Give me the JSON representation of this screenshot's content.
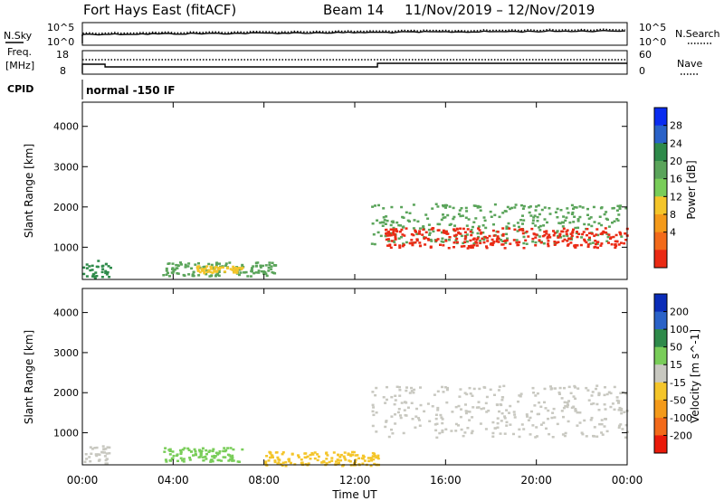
{
  "header": {
    "radar": "Fort Hays East (fitACF)",
    "beam": "Beam 14",
    "dates": "11/Nov/2019 – 12/Nov/2019"
  },
  "summary": {
    "nsky_label": "N.Sky",
    "nsky_ticks": [
      "10^5",
      "10^0"
    ],
    "nsearch_label": "N.Search",
    "freq_label": "Freq.",
    "freq_unit": "[MHz]",
    "freq_ticks": [
      "18",
      "8"
    ],
    "nave_label": "Nave",
    "nave_ticks": [
      "60",
      "0"
    ],
    "cpid_label": "CPID",
    "cpid_value": "normal -150 IF"
  },
  "chart_data": [
    {
      "type": "heatmap",
      "name": "power",
      "ylabel": "Slant Range [km]",
      "xlabel": "Time UT",
      "ylim": [
        200,
        4600
      ],
      "yticks": [
        "4000",
        "3000",
        "2000",
        "1000"
      ],
      "colorbar_label": "Power [dB]",
      "colorbar_ticks": [
        "28",
        "24",
        "20",
        "16",
        "12",
        "8",
        "4"
      ],
      "colorbar_colors": [
        "#0a2cf0",
        "#2a62c8",
        "#2e8a4a",
        "#5aa45a",
        "#79cd59",
        "#f4c52a",
        "#f49a1a",
        "#f26a1a",
        "#ea2a14"
      ],
      "scatter_regions": [
        {
          "t_start": 0.0,
          "t_end": 1.2,
          "r_low": 250,
          "r_high": 700,
          "color": "#2e8a4a"
        },
        {
          "t_start": 3.5,
          "t_end": 8.5,
          "r_low": 300,
          "r_high": 650,
          "color": "#5aa45a"
        },
        {
          "t_start": 5.0,
          "t_end": 7.0,
          "r_low": 380,
          "r_high": 560,
          "color": "#f4c52a"
        },
        {
          "t_start": 12.7,
          "t_end": 24.0,
          "r_low": 1100,
          "r_high": 2100,
          "color": "#5aa45a"
        },
        {
          "t_start": 13.3,
          "t_end": 24.0,
          "r_low": 1000,
          "r_high": 1500,
          "color": "#ea2a14"
        }
      ]
    },
    {
      "type": "heatmap",
      "name": "velocity",
      "ylabel": "Slant Range [km]",
      "xlabel": "Time UT",
      "ylim": [
        200,
        4600
      ],
      "yticks": [
        "4000",
        "3000",
        "2000",
        "1000"
      ],
      "xticks": [
        "00:00",
        "04:00",
        "08:00",
        "12:00",
        "16:00",
        "20:00",
        "00:00"
      ],
      "colorbar_label": "Velocity [m s^-1]",
      "colorbar_ticks": [
        "200",
        "100",
        "50",
        "15",
        "-15",
        "-50",
        "-100",
        "-200"
      ],
      "colorbar_colors": [
        "#0a2cb8",
        "#2a62c8",
        "#2e8a4a",
        "#79cd59",
        "#c8c8c0",
        "#f4c52a",
        "#f49a1a",
        "#f26a1a",
        "#ea1a0a"
      ],
      "scatter_regions": [
        {
          "t_start": 0.0,
          "t_end": 1.2,
          "r_low": 250,
          "r_high": 700,
          "color": "#c8c8c0"
        },
        {
          "t_start": 3.5,
          "t_end": 7.0,
          "r_low": 300,
          "r_high": 650,
          "color": "#79cd59"
        },
        {
          "t_start": 8.0,
          "t_end": 13.0,
          "r_low": 200,
          "r_high": 550,
          "color": "#f4c52a"
        },
        {
          "t_start": 12.7,
          "t_end": 24.0,
          "r_low": 900,
          "r_high": 2200,
          "color": "#c8c8c0"
        }
      ]
    }
  ]
}
